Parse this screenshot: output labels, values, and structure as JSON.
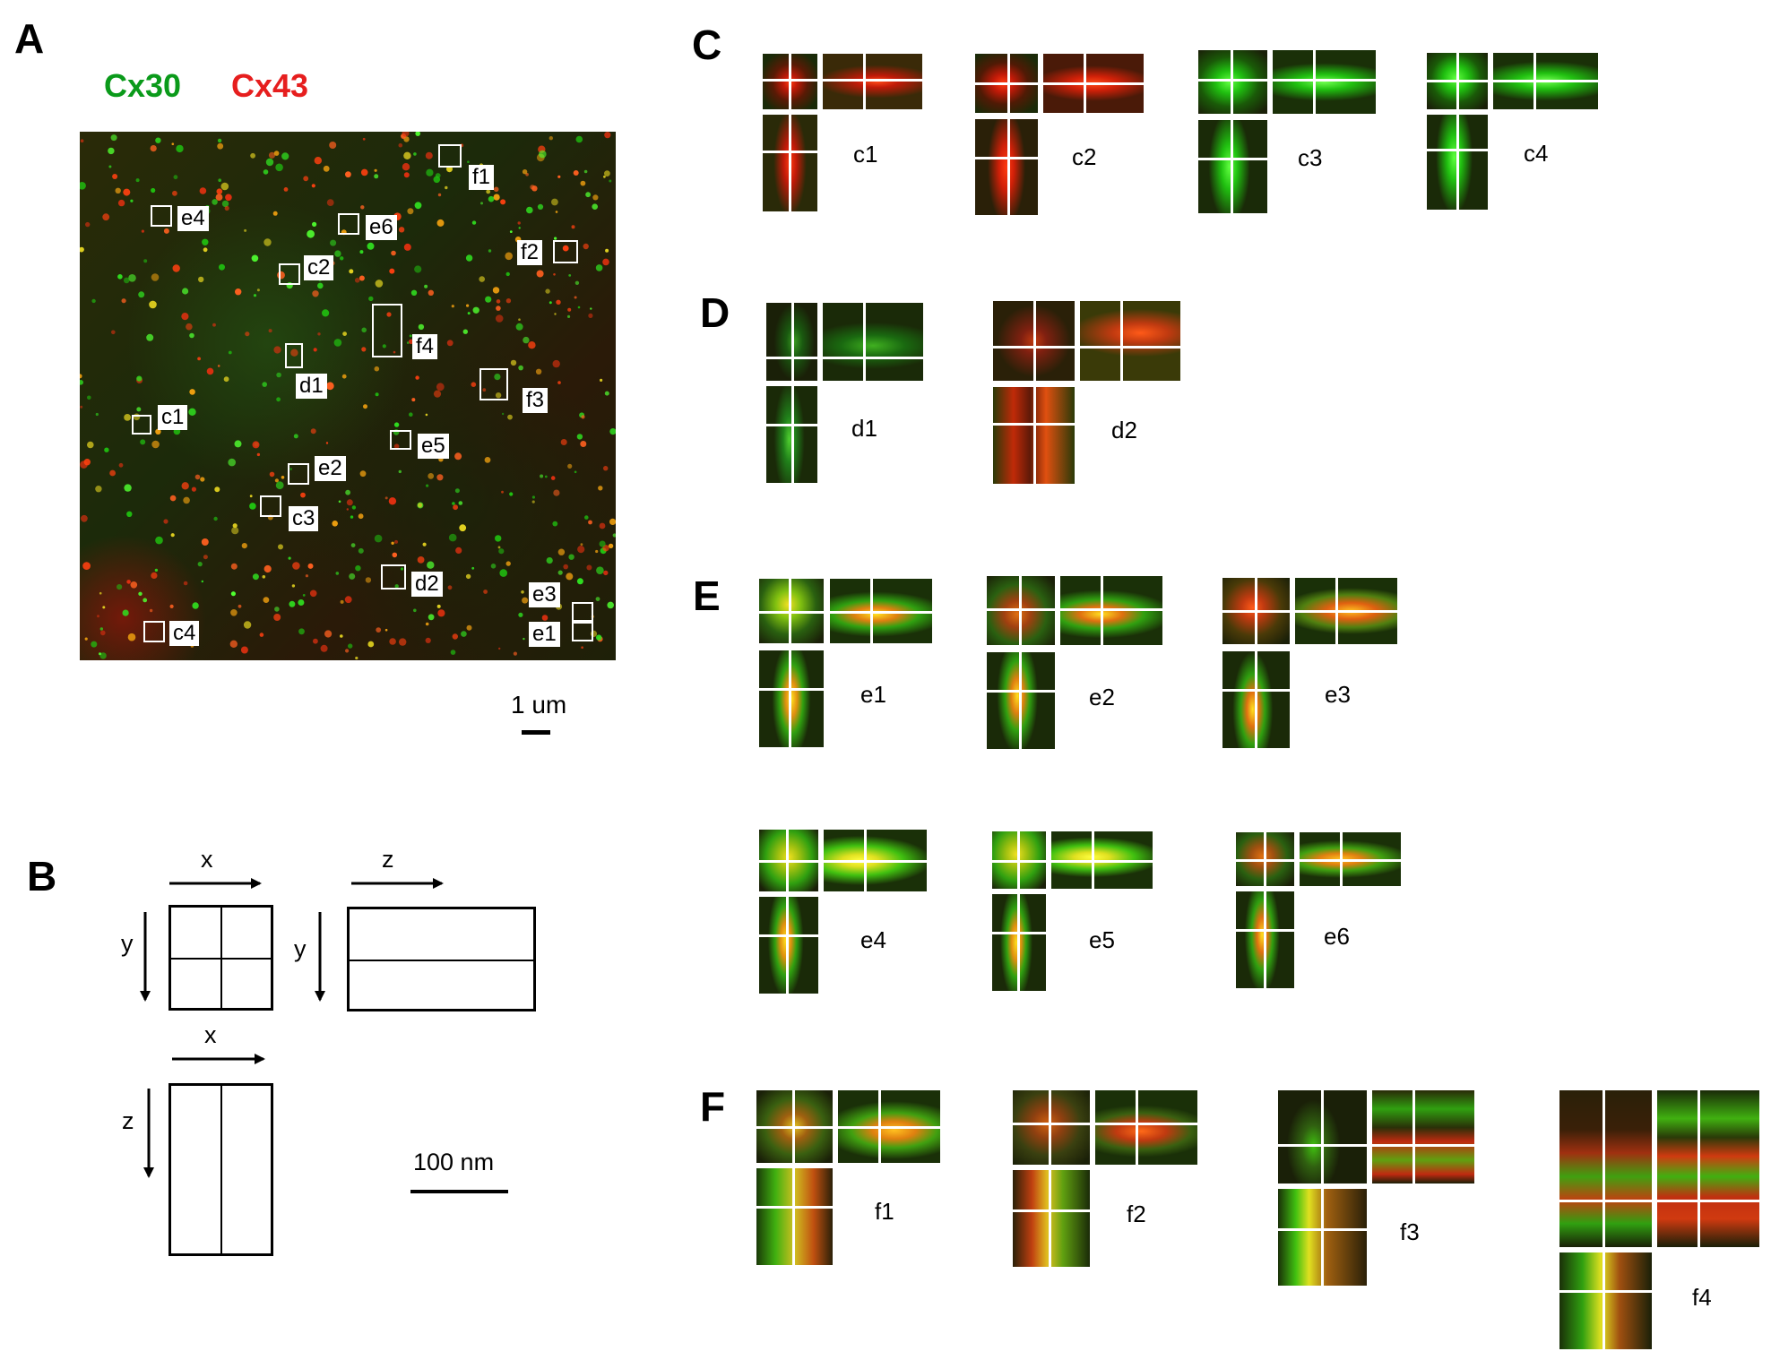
{
  "panel_letters": {
    "a": "A",
    "b": "B",
    "c": "C",
    "d": "D",
    "e": "E",
    "f": "F"
  },
  "legend": {
    "green_word": "Cx30",
    "red_word": "Cx43",
    "green_color": "#0a9a1a",
    "red_color": "#e61e1e"
  },
  "panel_a": {
    "scale_label": "1 um",
    "roi_labels": [
      "f1",
      "e4",
      "e6",
      "f2",
      "c2",
      "f4",
      "d1",
      "f3",
      "c1",
      "e5",
      "e2",
      "c3",
      "d2",
      "e3",
      "e1",
      "c4"
    ]
  },
  "panel_b": {
    "axis_x_top": "x",
    "axis_y_left": "y",
    "axis_z_top": "z",
    "axis_y_mid": "y",
    "axis_x_bottom": "x",
    "axis_z_bottom": "z",
    "scale_label": "100 nm"
  },
  "panel_c": {
    "labels": [
      "c1",
      "c2",
      "c3",
      "c4"
    ]
  },
  "panel_d": {
    "labels": [
      "d1",
      "d2"
    ]
  },
  "panel_e": {
    "labels": [
      "e1",
      "e2",
      "e3",
      "e4",
      "e5",
      "e6"
    ]
  },
  "panel_f": {
    "labels": [
      "f1",
      "f2",
      "f3",
      "f4"
    ]
  }
}
